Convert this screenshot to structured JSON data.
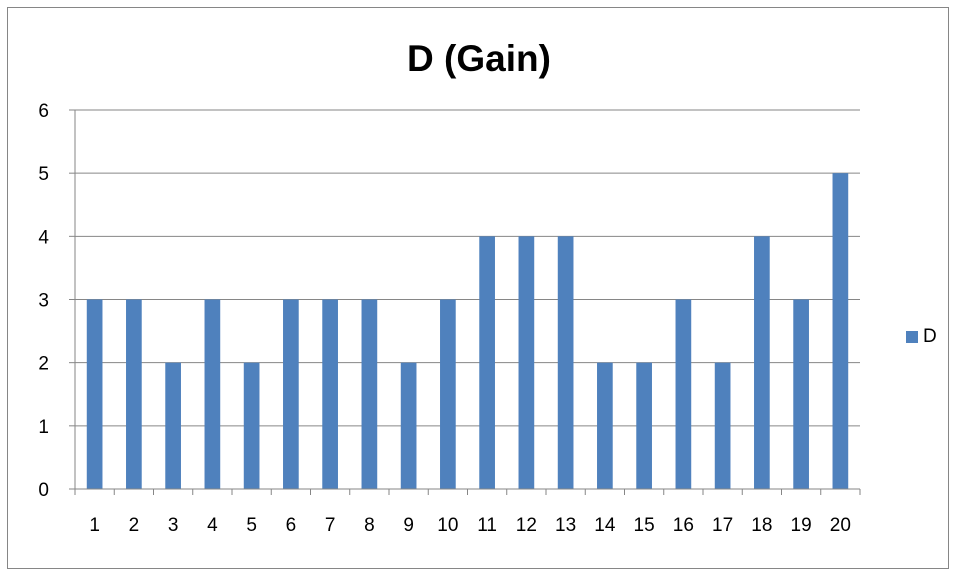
{
  "chart_data": {
    "type": "bar",
    "title": "D (Gain)",
    "xlabel": "",
    "ylabel": "",
    "categories": [
      "1",
      "2",
      "3",
      "4",
      "5",
      "6",
      "7",
      "8",
      "9",
      "10",
      "11",
      "12",
      "13",
      "14",
      "15",
      "16",
      "17",
      "18",
      "19",
      "20"
    ],
    "series": [
      {
        "name": "D",
        "color": "#4f81bd",
        "values": [
          3,
          3,
          2,
          3,
          2,
          3,
          3,
          3,
          2,
          3,
          4,
          4,
          4,
          2,
          2,
          3,
          2,
          4,
          3,
          5
        ]
      }
    ],
    "ylim": [
      0,
      6
    ],
    "yticks": [
      "0",
      "1",
      "2",
      "3",
      "4",
      "5",
      "6"
    ],
    "grid": true,
    "legend_position": "right",
    "colors": {
      "bar": "#4f81bd",
      "grid": "#868686",
      "frame": "#868686"
    }
  }
}
